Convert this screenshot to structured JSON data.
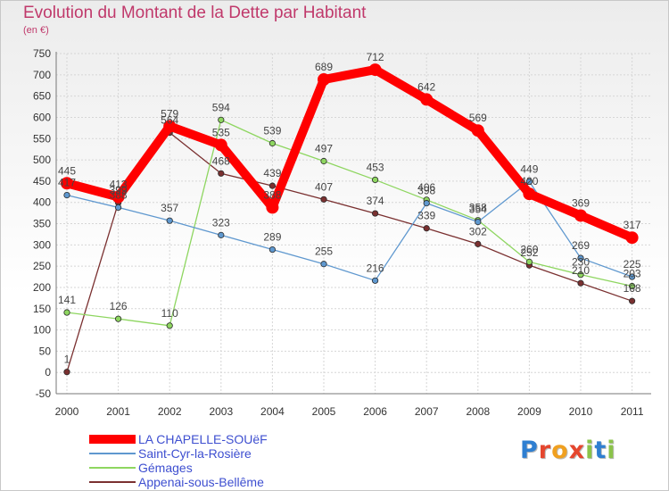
{
  "title": "Evolution du Montant de la Dette par Habitant",
  "subtitle": "(en €)",
  "brand": {
    "text": "Proxiti",
    "letters": [
      "P",
      "r",
      "o",
      "x",
      "i",
      "t",
      "i"
    ],
    "colors": [
      "#2f7fd1",
      "#e5462e",
      "#f0a020",
      "#e5462e",
      "#8bc34a",
      "#2f7fd1",
      "#8bc34a"
    ]
  },
  "chart_data": {
    "type": "line",
    "x": [
      "2000",
      "2001",
      "2002",
      "2003",
      "2004",
      "2005",
      "2006",
      "2007",
      "2008",
      "2009",
      "2010",
      "2011"
    ],
    "ylim": [
      -50,
      750
    ],
    "yticks": [
      -50,
      0,
      50,
      100,
      150,
      200,
      250,
      300,
      350,
      400,
      450,
      500,
      550,
      600,
      650,
      700,
      750
    ],
    "grid": true,
    "legend_position": "bottom-left",
    "series": [
      {
        "name": "LA CHAPELLE-SOUëF",
        "color": "#ff0000",
        "values": [
          445,
          413,
          579,
          535,
          388,
          689,
          712,
          642,
          569,
          420,
          369,
          317
        ],
        "labels": [
          "445",
          "413",
          "579",
          "535",
          "388",
          "689",
          "712",
          "642",
          "569",
          "420",
          "369",
          "317"
        ]
      },
      {
        "name": "Saint-Cyr-la-Rosière",
        "color": "#5f98cf",
        "values": [
          417,
          388,
          357,
          323,
          289,
          255,
          216,
          398,
          354,
          449,
          269,
          225
        ],
        "labels": [
          "417",
          "388",
          "357",
          "323",
          "289",
          "255",
          "216",
          "398",
          "354",
          "449",
          "269",
          "225"
        ]
      },
      {
        "name": "Gémages",
        "color": "#8ed660",
        "values": [
          141,
          126,
          110,
          594,
          539,
          497,
          453,
          406,
          358,
          260,
          230,
          203
        ],
        "labels": [
          "141",
          "126",
          "110",
          "594",
          "539",
          "497",
          "453",
          "406",
          "358",
          "260",
          "230",
          "203"
        ]
      },
      {
        "name": "Appenai-sous-Bellême",
        "color": "#7a3030",
        "values": [
          1,
          399,
          564,
          468,
          439,
          407,
          374,
          339,
          302,
          252,
          210,
          168
        ],
        "labels": [
          "1",
          "399",
          "564",
          "468",
          "439",
          "407",
          "374",
          "339",
          "302",
          "252",
          "210",
          "168"
        ]
      }
    ]
  }
}
